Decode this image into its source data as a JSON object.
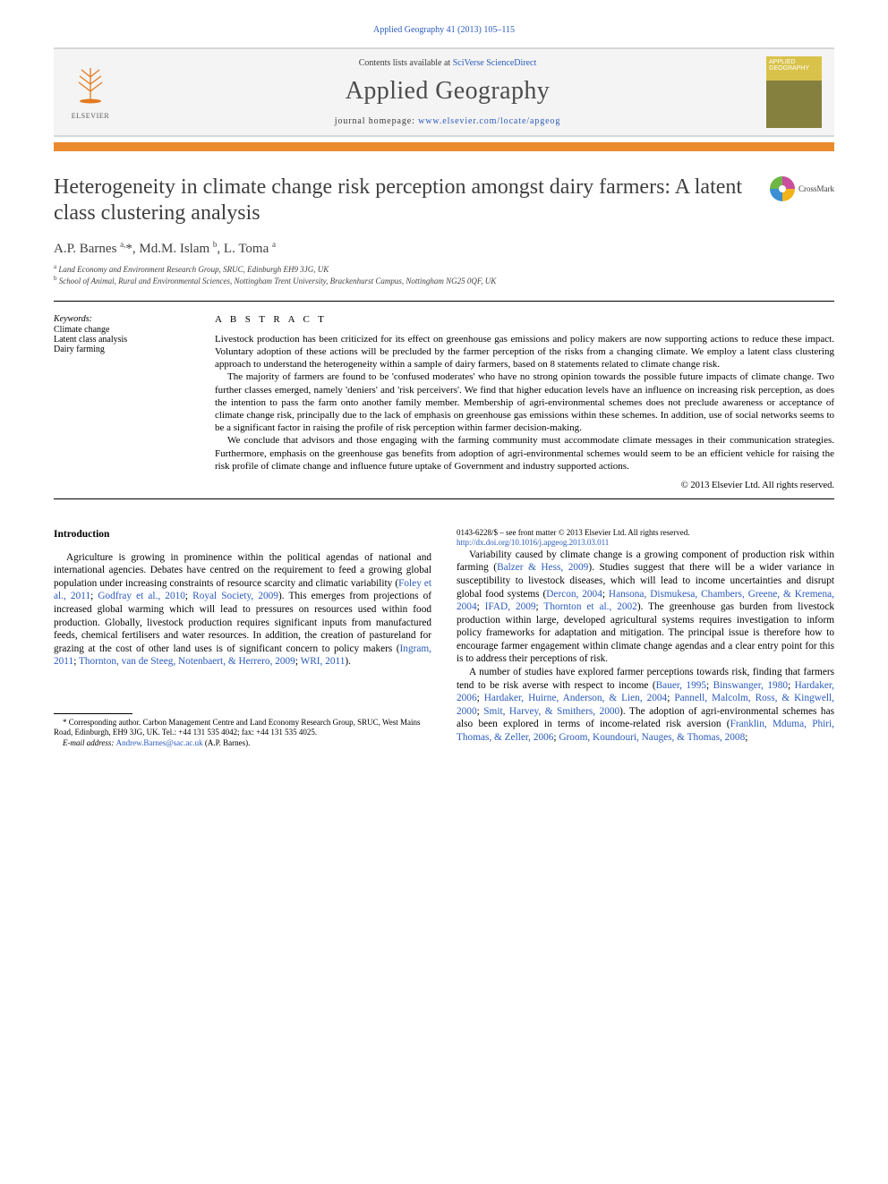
{
  "citation": "Applied Geography 41 (2013) 105–115",
  "header": {
    "contents_prefix": "Contents lists available at ",
    "contents_link": "SciVerse ScienceDirect",
    "journal_name": "Applied Geography",
    "homepage_prefix": "journal homepage: ",
    "homepage_url": "www.elsevier.com/locate/apgeog",
    "publisher": "ELSEVIER",
    "cover_text_line1": "APPLIED",
    "cover_text_line2": "GEOGRAPHY"
  },
  "crossmark": "CrossMark",
  "title": "Heterogeneity in climate change risk perception amongst dairy farmers: A latent class clustering analysis",
  "authors_html": "A.P. Barnes <sup>a,</sup>*, Md.M. Islam <sup>b</sup>, L. Toma <sup>a</sup>",
  "affiliations": [
    {
      "sup": "a",
      "text": "Land Economy and Environment Research Group, SRUC, Edinburgh EH9 3JG, UK"
    },
    {
      "sup": "b",
      "text": "School of Animal, Rural and Environmental Sciences, Nottingham Trent University, Brackenhurst Campus, Nottingham NG25 0QF, UK"
    }
  ],
  "keywords": {
    "head": "Keywords:",
    "items": [
      "Climate change",
      "Latent class analysis",
      "Dairy farming"
    ]
  },
  "abstract": {
    "head": "A B S T R A C T",
    "paragraphs": [
      "Livestock production has been criticized for its effect on greenhouse gas emissions and policy makers are now supporting actions to reduce these impact. Voluntary adoption of these actions will be precluded by the farmer perception of the risks from a changing climate. We employ a latent class clustering approach to understand the heterogeneity within a sample of dairy farmers, based on 8 statements related to climate change risk.",
      "The majority of farmers are found to be 'confused moderates' who have no strong opinion towards the possible future impacts of climate change. Two further classes emerged, namely 'deniers' and 'risk perceivers'. We find that higher education levels have an influence on increasing risk perception, as does the intention to pass the farm onto another family member. Membership of agri-environmental schemes does not preclude awareness or acceptance of climate change risk, principally due to the lack of emphasis on greenhouse gas emissions within these schemes. In addition, use of social networks seems to be a significant factor in raising the profile of risk perception within farmer decision-making.",
      "We conclude that advisors and those engaging with the farming community must accommodate climate messages in their communication strategies. Furthermore, emphasis on the greenhouse gas benefits from adoption of agri-environmental schemes would seem to be an efficient vehicle for raising the risk profile of climate change and influence future uptake of Government and industry supported actions."
    ],
    "copyright": "© 2013 Elsevier Ltd. All rights reserved."
  },
  "body": {
    "section_head": "Introduction",
    "col1_p1_pre": "Agriculture is growing in prominence within the political agendas of national and international agencies. Debates have centred on the requirement to feed a growing global population under increasing constraints of resource scarcity and climatic variability (",
    "col1_p1_link1": "Foley et al., 2011",
    "col1_p1_sep1": "; ",
    "col1_p1_link2": "Godfray et al., 2010",
    "col1_p1_sep2": "; ",
    "col1_p1_link3": "Royal Society, 2009",
    "col1_p1_mid": "). This emerges from projections of increased global warming which will lead to pressures on resources used within food production. Globally, livestock production requires significant inputs from manufactured feeds, chemical fertilisers and water resources. In addition, the creation of pastureland for grazing at the cost of other land uses is of significant concern to policy makers (",
    "col1_p1_link4": "Ingram, 2011",
    "col1_p1_sep3": "; ",
    "col1_p1_link5": "Thornton, van de Steeg, Notenbaert, & Herrero, 2009",
    "col1_p1_sep4": "; ",
    "col1_p1_link6": "WRI, 2011",
    "col1_p1_end": ").",
    "col2_p1_pre": "Variability caused by climate change is a growing component of production risk within farming (",
    "col2_p1_link1": "Balzer & Hess, 2009",
    "col2_p1_mid1": "). Studies suggest that there will be a wider variance in susceptibility to livestock diseases, which will lead to income uncertainties and disrupt global food systems (",
    "col2_p1_link2": "Dercon, 2004",
    "col2_p1_s2": "; ",
    "col2_p1_link3": "Hansona, Dismukesa, Chambers, Greene, & Kremena, 2004",
    "col2_p1_s3": "; ",
    "col2_p1_link4": "IFAD, 2009",
    "col2_p1_s4": "; ",
    "col2_p1_link5": "Thornton et al., 2002",
    "col2_p1_mid2": "). The greenhouse gas burden from livestock production within large, developed agricultural systems requires investigation to inform policy frameworks for adaptation and mitigation. The principal issue is therefore how to encourage farmer engagement within climate change agendas and a clear entry point for this is to address their perceptions of risk.",
    "col2_p2_pre": "A number of studies have explored farmer perceptions towards risk, finding that farmers tend to be risk averse with respect to income (",
    "col2_p2_link1": "Bauer, 1995",
    "col2_p2_s1": "; ",
    "col2_p2_link2": "Binswanger, 1980",
    "col2_p2_s2": "; ",
    "col2_p2_link3": "Hardaker, 2006",
    "col2_p2_s3": "; ",
    "col2_p2_link4": "Hardaker, Huirne, Anderson, & Lien, 2004",
    "col2_p2_s4": "; ",
    "col2_p2_link5": "Pannell, Malcolm, Ross, & Kingwell, 2000",
    "col2_p2_s5": "; ",
    "col2_p2_link6": "Smit, Harvey, & Smithers, 2000",
    "col2_p2_mid": "). The adoption of agri-environmental schemes has also been explored in terms of income-related risk aversion (",
    "col2_p2_link7": "Franklin, Mduma, Phiri, Thomas, & Zeller, 2006",
    "col2_p2_s6": "; ",
    "col2_p2_link8": "Groom, Koundouri, Nauges, & Thomas, 2008",
    "col2_p2_end": ";"
  },
  "footnote": {
    "corr": "* Corresponding author. Carbon Management Centre and Land Economy Research Group, SRUC, West Mains Road, Edinburgh, EH9 3JG, UK. Tel.: +44 131 535 4042; fax: +44 131 535 4025.",
    "email_label": "E-mail address: ",
    "email": "Andrew.Barnes@sac.ac.uk",
    "email_suffix": " (A.P. Barnes)."
  },
  "bottom": {
    "issn_line": "0143-6228/$ – see front matter © 2013 Elsevier Ltd. All rights reserved.",
    "doi": "http://dx.doi.org/10.1016/j.apgeog.2013.03.011"
  },
  "colors": {
    "link_color": "#2b5bbb",
    "orange_rule": "#eb8b2d",
    "header_bg": "#f4f4f4",
    "body_text": "#000000",
    "title_text": "#3f3f3f"
  }
}
